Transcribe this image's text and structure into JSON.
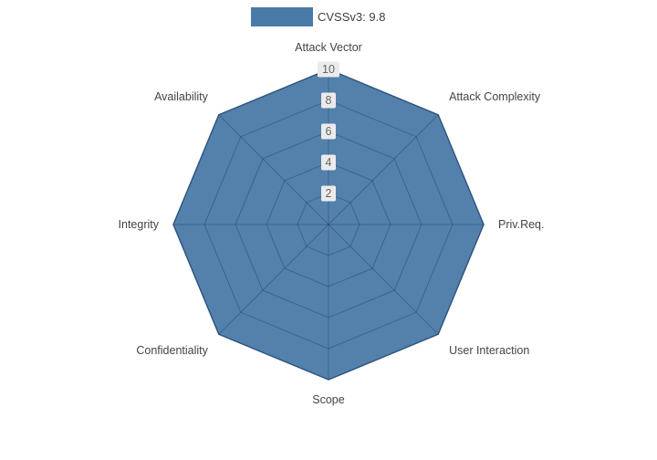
{
  "legend": {
    "label": "CVSSv3: 9.8",
    "swatch_color": "#4a7aa8"
  },
  "chart_data": {
    "type": "radar",
    "title": "CVSSv3: 9.8",
    "categories": [
      "Attack Vector",
      "Attack Complexity",
      "Priv.Req.",
      "User Interaction",
      "Scope",
      "Confidentiality",
      "Integrity",
      "Availability"
    ],
    "series": [
      {
        "name": "CVSSv3: 9.8",
        "values": [
          10,
          10,
          10,
          10,
          10,
          10,
          10,
          10
        ]
      }
    ],
    "radial_ticks": [
      2,
      4,
      6,
      8,
      10
    ],
    "range": [
      0,
      10
    ],
    "grid": true,
    "legend_position": "top",
    "fill_color": "#4a7aa8",
    "line_color": "#3a6590",
    "inner_grid_color": "rgba(20,40,70,0.30)",
    "outer_grid_color": "#c9c9c9",
    "tick_label_bg": "#ebebeb",
    "tick_label_color": "#666666",
    "axis_label_color": "#444444"
  }
}
